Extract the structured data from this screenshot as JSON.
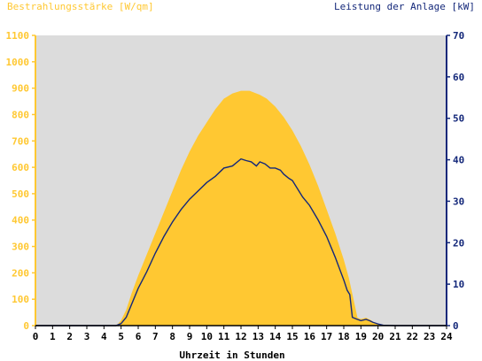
{
  "colors": {
    "plot_bg": "#dcdcdc",
    "irradiance_fill": "#ffc832",
    "power_line": "#14287a",
    "axis_left": "#ffc832",
    "axis_right": "#14287a"
  },
  "chart_data": {
    "type": "area",
    "title_left": "Bestrahlungsstärke [W/qm]",
    "title_right": "Leistung der Anlage [kW]",
    "xlabel": "Uhrzeit in Stunden",
    "xlim": [
      0,
      24
    ],
    "x_ticks": [
      "0",
      "1",
      "2",
      "3",
      "4",
      "5",
      "6",
      "7",
      "8",
      "9",
      "10",
      "11",
      "12",
      "13",
      "14",
      "15",
      "16",
      "17",
      "18",
      "19",
      "20",
      "21",
      "22",
      "23",
      "24"
    ],
    "y_left": {
      "min": 0,
      "max": 1100,
      "ticks": [
        "0",
        "100",
        "200",
        "300",
        "400",
        "500",
        "600",
        "700",
        "800",
        "900",
        "1000",
        "1100"
      ]
    },
    "y_right": {
      "min": 0,
      "max": 70,
      "ticks": [
        "0",
        "10",
        "20",
        "30",
        "40",
        "50",
        "60",
        "70"
      ]
    },
    "grid": false,
    "series": [
      {
        "name": "Bestrahlungsstärke [W/qm]",
        "type": "area",
        "axis": "left",
        "x": [
          0,
          4.6,
          4.8,
          5.0,
          5.3,
          5.6,
          6.0,
          6.5,
          7.0,
          7.5,
          8.0,
          8.5,
          9.0,
          9.5,
          10.0,
          10.5,
          11.0,
          11.5,
          12.0,
          12.5,
          12.9,
          13.1,
          13.5,
          14.0,
          14.5,
          15.0,
          15.5,
          16.0,
          16.5,
          17.0,
          17.5,
          18.0,
          18.3,
          18.5,
          18.8,
          19.0,
          19.3,
          19.6,
          19.8,
          20.0,
          20.3,
          20.6,
          21.0,
          24.0
        ],
        "values": [
          0,
          0,
          5,
          20,
          60,
          120,
          190,
          270,
          350,
          430,
          510,
          590,
          660,
          720,
          770,
          820,
          860,
          880,
          890,
          890,
          880,
          875,
          860,
          830,
          790,
          740,
          680,
          610,
          530,
          440,
          350,
          250,
          180,
          120,
          30,
          25,
          30,
          20,
          10,
          5,
          2,
          0,
          0,
          0
        ]
      },
      {
        "name": "Leistung der Anlage [kW]",
        "type": "line",
        "axis": "right",
        "x": [
          0,
          4.7,
          5.0,
          5.3,
          5.6,
          6.0,
          6.5,
          7.0,
          7.5,
          8.0,
          8.5,
          9.0,
          9.5,
          10.0,
          10.5,
          11.0,
          11.5,
          12.0,
          12.3,
          12.6,
          12.9,
          13.1,
          13.4,
          13.7,
          14.0,
          14.3,
          14.5,
          14.8,
          15.0,
          15.3,
          15.6,
          16.0,
          16.5,
          17.0,
          17.5,
          18.0,
          18.2,
          18.35,
          18.5,
          18.8,
          19.0,
          19.3,
          19.5,
          19.7,
          20.0,
          20.3,
          21.0,
          24.0
        ],
        "values": [
          0,
          0,
          0.5,
          2,
          5,
          9,
          13,
          17.5,
          21.5,
          25,
          28,
          30.5,
          32.5,
          34.5,
          36,
          38,
          38.5,
          40.2,
          39.8,
          39.5,
          38.5,
          39.5,
          39,
          38,
          38,
          37.5,
          36.5,
          35.5,
          35,
          33,
          31,
          29,
          25.5,
          21.5,
          16.5,
          11,
          8.5,
          7.5,
          2,
          1.5,
          1.2,
          1.5,
          1.2,
          0.8,
          0.4,
          0.1,
          0,
          0
        ]
      }
    ]
  }
}
